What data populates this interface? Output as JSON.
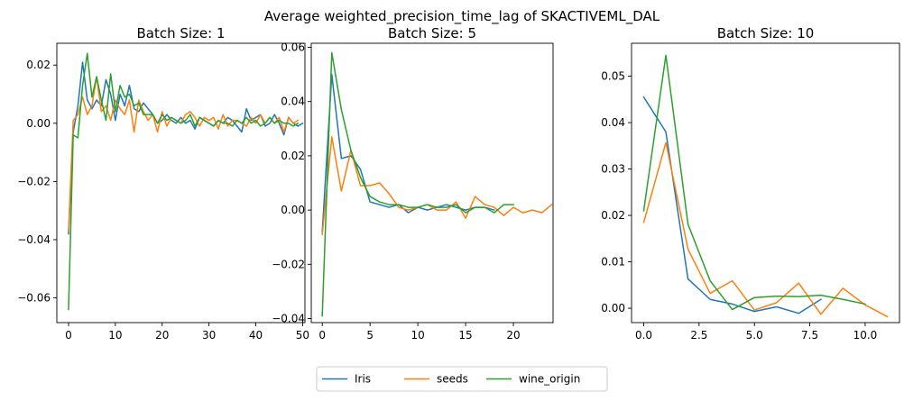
{
  "chart_data": {
    "type": "line",
    "title": "Average weighted_precision_time_lag of SKACTIVEML_DAL",
    "legend": {
      "placement": "bottom-center",
      "entries": [
        {
          "name": "Iris",
          "color": "#1f77b4"
        },
        {
          "name": "seeds",
          "color": "#ff7f0e"
        },
        {
          "name": "wine_origin",
          "color": "#2ca02c"
        }
      ]
    },
    "panels": [
      {
        "title": "Batch Size: 1",
        "xlim": [
          -2.5,
          50.5
        ],
        "ylim": [
          -0.0685,
          0.0275
        ],
        "xticks": [
          {
            "v": 0,
            "label": "0"
          },
          {
            "v": 10,
            "label": "10"
          },
          {
            "v": 20,
            "label": "20"
          },
          {
            "v": 30,
            "label": "30"
          },
          {
            "v": 40,
            "label": "40"
          },
          {
            "v": 50,
            "label": "50"
          }
        ],
        "yticks": [
          {
            "v": -0.06,
            "label": "−0.06"
          },
          {
            "v": -0.04,
            "label": "−0.04"
          },
          {
            "v": -0.02,
            "label": "−0.02"
          },
          {
            "v": 0.0,
            "label": "0.00"
          },
          {
            "v": 0.02,
            "label": "0.02"
          }
        ],
        "series": [
          {
            "name": "Iris",
            "color": "#1f77b4",
            "x_start": 0,
            "values": [
              -0.038,
              -0.003,
              0.006,
              0.021,
              0.008,
              0.005,
              0.008,
              0.006,
              0.015,
              0.01,
              0.001,
              0.01,
              0.006,
              0.013,
              0.005,
              0.004,
              0.007,
              0.005,
              0.003,
              0.0,
              0.001,
              0.003,
              0.001,
              0.0,
              0.002,
              0.0,
              0.001,
              -0.002,
              0.002,
              0.001,
              0.0,
              -0.001,
              0.001,
              0.0,
              0.002,
              0.001,
              -0.001,
              -0.003,
              0.005,
              0.001,
              0.002,
              0.003,
              -0.001,
              0.0,
              0.003,
              0.0,
              -0.004,
              0.002,
              0.0,
              -0.001,
              0.0
            ]
          },
          {
            "name": "seeds",
            "color": "#ff7f0e",
            "x_start": 0,
            "values": [
              -0.037,
              0.001,
              0.003,
              0.009,
              0.003,
              0.006,
              0.016,
              0.004,
              0.006,
              0.001,
              0.008,
              0.005,
              0.003,
              0.008,
              -0.003,
              0.008,
              0.004,
              0.001,
              0.003,
              -0.003,
              0.004,
              -0.001,
              0.002,
              0.001,
              0.0,
              0.003,
              0.004,
              0.002,
              -0.001,
              0.002,
              0.001,
              0.002,
              -0.002,
              0.003,
              -0.001,
              0.001,
              0.001,
              0.0,
              -0.001,
              0.002,
              0.0,
              0.003,
              0.0,
              0.002,
              0.0,
              0.002,
              -0.003,
              0.002,
              0.0,
              0.001
            ]
          },
          {
            "name": "wine_origin",
            "color": "#2ca02c",
            "x_start": 0,
            "values": [
              -0.064,
              -0.004,
              -0.005,
              0.013,
              0.024,
              0.009,
              0.016,
              0.008,
              0.001,
              0.017,
              0.004,
              0.013,
              0.009,
              0.01,
              0.006,
              0.007,
              0.003,
              0.003,
              0.003,
              0.0,
              0.003,
              0.001,
              0.002,
              0.001,
              0.0,
              0.001,
              0.003,
              -0.001,
              0.002,
              0.001,
              0.0,
              -0.001,
              0.001,
              0.0,
              0.0,
              -0.001,
              0.001,
              0.0,
              0.002,
              0.0,
              0.001,
              -0.001,
              0.0,
              0.002,
              0.0,
              0.001,
              0.0,
              0.0,
              -0.001,
              0.0
            ]
          }
        ]
      },
      {
        "title": "Batch Size: 5",
        "xlim": [
          -1.15,
          24.15
        ],
        "ylim": [
          -0.0415,
          0.0615
        ],
        "xticks": [
          {
            "v": 0,
            "label": "0"
          },
          {
            "v": 5,
            "label": "5"
          },
          {
            "v": 10,
            "label": "10"
          },
          {
            "v": 15,
            "label": "15"
          },
          {
            "v": 20,
            "label": "20"
          }
        ],
        "yticks": [
          {
            "v": -0.04,
            "label": "−0.04"
          },
          {
            "v": -0.02,
            "label": "−0.02"
          },
          {
            "v": 0.0,
            "label": "0.00"
          },
          {
            "v": 0.02,
            "label": "0.02"
          },
          {
            "v": 0.04,
            "label": "0.04"
          },
          {
            "v": 0.06,
            "label": "0.06"
          }
        ],
        "series": [
          {
            "name": "Iris",
            "color": "#1f77b4",
            "x_start": 0,
            "values": [
              -0.008,
              0.05,
              0.019,
              0.02,
              0.015,
              0.003,
              0.002,
              0.001,
              0.002,
              -0.001,
              0.001,
              0.0,
              0.001,
              0.002,
              0.001,
              0.0,
              0.001,
              0.001,
              0.0
            ]
          },
          {
            "name": "seeds",
            "color": "#ff7f0e",
            "x_start": 0,
            "values": [
              -0.009,
              0.027,
              0.007,
              0.022,
              0.009,
              0.009,
              0.01,
              0.006,
              0.001,
              0.0,
              0.001,
              0.002,
              0.0,
              0.0,
              0.003,
              -0.003,
              0.005,
              0.002,
              0.001,
              -0.002,
              0.001,
              -0.001,
              0.0,
              -0.001,
              0.002
            ]
          },
          {
            "name": "wine_origin",
            "color": "#2ca02c",
            "x_start": 0,
            "values": [
              -0.039,
              0.058,
              0.037,
              0.022,
              0.012,
              0.005,
              0.003,
              0.002,
              0.002,
              0.001,
              0.001,
              0.002,
              0.001,
              0.001,
              0.002,
              -0.001,
              0.001,
              0.001,
              -0.001,
              0.002,
              0.002
            ]
          }
        ]
      },
      {
        "title": "Batch Size: 10",
        "xlim": [
          -0.55,
          11.55
        ],
        "ylim": [
          -0.0031,
          0.0571
        ],
        "xticks": [
          {
            "v": 0.0,
            "label": "0.0"
          },
          {
            "v": 2.5,
            "label": "2.5"
          },
          {
            "v": 5.0,
            "label": "5.0"
          },
          {
            "v": 7.5,
            "label": "7.5"
          },
          {
            "v": 10.0,
            "label": "10.0"
          }
        ],
        "yticks": [
          {
            "v": 0.0,
            "label": "0.00"
          },
          {
            "v": 0.01,
            "label": "0.01"
          },
          {
            "v": 0.02,
            "label": "0.02"
          },
          {
            "v": 0.03,
            "label": "0.03"
          },
          {
            "v": 0.04,
            "label": "0.04"
          },
          {
            "v": 0.05,
            "label": "0.05"
          }
        ],
        "series": [
          {
            "name": "Iris",
            "color": "#1f77b4",
            "x_start": 0,
            "values": [
              0.0455,
              0.038,
              0.0063,
              0.0019,
              0.0009,
              -0.0007,
              0.0003,
              -0.0011,
              0.0019
            ]
          },
          {
            "name": "seeds",
            "color": "#ff7f0e",
            "x_start": 0,
            "values": [
              0.0185,
              0.0357,
              0.0127,
              0.0032,
              0.0059,
              -0.0004,
              0.0012,
              0.0054,
              -0.0013,
              0.0043,
              0.0007,
              -0.0018
            ]
          },
          {
            "name": "wine_origin",
            "color": "#2ca02c",
            "x_start": 0,
            "values": [
              0.021,
              0.0545,
              0.0181,
              0.0059,
              -0.0003,
              0.0023,
              0.0026,
              0.0025,
              0.0028,
              0.0019,
              0.0009
            ]
          }
        ]
      }
    ]
  }
}
